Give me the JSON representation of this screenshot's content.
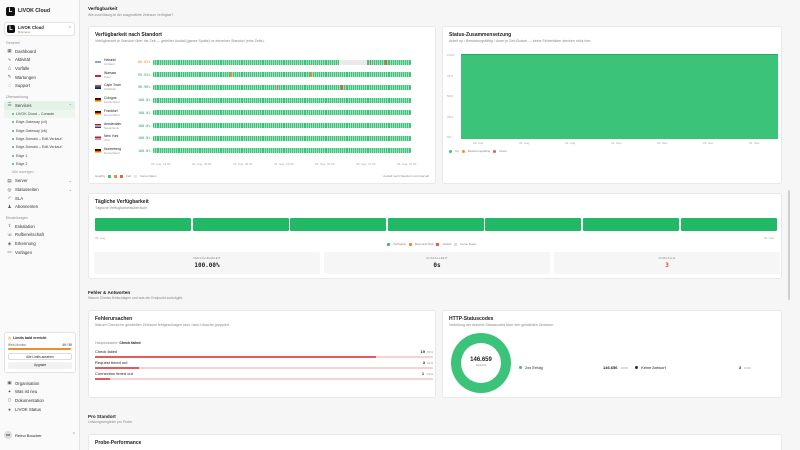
{
  "app": {
    "brand": "LIVOK Cloud",
    "org_name": "LIVOK Cloud",
    "org_plan": "Business"
  },
  "sidebar": {
    "section_general": "Generell",
    "general_items": [
      {
        "label": "Dashboard",
        "icon": "dashboard-icon"
      },
      {
        "label": "Aktivität",
        "icon": "activity-icon"
      },
      {
        "label": "Vorfälle",
        "icon": "incident-icon"
      },
      {
        "label": "Wartungen",
        "icon": "wrench-icon"
      },
      {
        "label": "Support",
        "icon": "support-icon"
      }
    ],
    "section_monitoring": "Überwachung",
    "services_label": "Services",
    "service_subitems": [
      "LIVOK Cloud – Console",
      "Edge-Gateway (v4)",
      "Edge-Gateway (v6)",
      "Edge-Domain – Edit-Verkauf",
      "Edge-Domain – Edit-Verkauf",
      "Edge 1",
      "Edge 2"
    ],
    "show_all": "Alle anzeigen",
    "more_items": [
      {
        "label": "Server",
        "icon": "server-icon"
      },
      {
        "label": "Statusseiten",
        "icon": "globe-icon"
      },
      {
        "label": "SLA",
        "icon": "sla-icon"
      },
      {
        "label": "Abonnenten",
        "icon": "subscribers-icon"
      }
    ],
    "section_settings": "Einstellungen",
    "settings_items": [
      {
        "label": "Eskalation",
        "icon": "escalation-icon"
      },
      {
        "label": "Rufbereitschaft",
        "icon": "oncall-icon"
      },
      {
        "label": "Erkennung",
        "icon": "detect-icon"
      },
      {
        "label": "Vorlagen",
        "icon": "template-icon"
      }
    ],
    "limits_title": "Limits bald erreicht",
    "limits_row_label": "Web-Monitor",
    "limits_row_value": "49 / 50",
    "limits_fill": 0.98,
    "limits_link": "Alle Limits ansehen",
    "upgrade": "Upgrade",
    "bottom_items": [
      {
        "label": "Organisation",
        "icon": "org-icon"
      },
      {
        "label": "Was ist neu",
        "icon": "news-icon"
      },
      {
        "label": "Dokumentation",
        "icon": "docs-icon"
      },
      {
        "label": "LIVOK Status",
        "icon": "status-icon"
      }
    ],
    "user_initials": "RB",
    "user_name": "Remo Boucher"
  },
  "main": {
    "availability_title": "Verfügbarkeit",
    "availability_sub": "Wie zuverlässig ist der ausgewählte Zeitraum verfügbar?",
    "by_location_title": "Verfügbarkeit nach Standort",
    "by_location_sub": "Verfügbarkeit je Standort über die Zeit — geteilter Ausfall (ganze Spalte) vs einzelner Standort (eine Zeile).",
    "locations": [
      {
        "name": "Helsinki",
        "country": "Finnland",
        "pct": "86.02%",
        "flag": "fi",
        "warn": true
      },
      {
        "name": "Warsaw",
        "country": "Polen",
        "pct": "95.92%",
        "flag": "pl",
        "warn": false
      },
      {
        "name": "Cape Town",
        "country": "Südafrika",
        "pct": "96.96%",
        "flag": "za",
        "warn": false
      },
      {
        "name": "Cologne",
        "country": "Deutschland",
        "pct": "100.0%",
        "flag": "de",
        "warn": false
      },
      {
        "name": "Frankfurt",
        "country": "Deutschland",
        "pct": "100.0%",
        "flag": "de",
        "warn": false
      },
      {
        "name": "Amsterdam",
        "country": "Niederlande",
        "pct": "100.0%",
        "flag": "nl",
        "warn": false
      },
      {
        "name": "New York",
        "country": "USA",
        "pct": "100.0%",
        "flag": "us",
        "warn": false
      },
      {
        "name": "Nuremberg",
        "country": "Deutschland",
        "pct": "100.0%",
        "flag": "de",
        "warn": false
      }
    ],
    "time_axis": [
      "29. Aug. 19:00",
      "30. Aug. 09:00",
      "31. Aug. 05:00",
      "01. Sep. 19:00",
      "02. Sep. 09:00",
      "03. Sep. 07:00",
      "04. Aug. 10:00"
    ],
    "legend_label": "Healthy",
    "legend_fail": "Fail",
    "legend_nodata": "Keine Daten",
    "legend_right": "Ausfall nach Standort und Intervall",
    "status_title": "Status-Zusammensetzung",
    "status_sub": "Anteil up / Bewertungsfähig / down je Zeit-Bucket — keine Fehlerbilder stecken nicht hier.",
    "status_y": [
      "100%",
      "75%",
      "50%",
      "25%",
      "0%"
    ],
    "status_x": [
      "29. Aug.",
      "30. Aug.",
      "31. Aug.",
      "01. Sep.",
      "02. Sep.",
      "03. Sep.",
      "04. Sep."
    ],
    "status_legend": [
      "Up",
      "Bewertungsfähig",
      "Down"
    ],
    "daily_title": "Tägliche Verfügbarkeit",
    "daily_sub": "Tägliche Verfügbarkeitsübersicht",
    "daily_start": "29. Aug.",
    "daily_end": "04. Sep.",
    "daily_legend": [
      "Verfügbar",
      "Beeinträchtigt",
      "Ausfall",
      "Keine Daten"
    ],
    "stats": [
      {
        "label": "VERFÜGBARKEIT",
        "value": "100.00%",
        "color": "#222"
      },
      {
        "label": "AUSFALLZEIT",
        "value": "0s",
        "color": "#222"
      },
      {
        "label": "VORFÄLLE",
        "value": "3",
        "color": "#d64545"
      }
    ],
    "errors_title": "Fehler & Antworten",
    "errors_sub": "Warum Checks fehlschlagen und was der Endpunkt zurückgibt.",
    "causes_title": "Fehlerursachen",
    "causes_sub": "Warum Checks im gewählten Zeitraum fehlgeschlagen sind, nach Ursache gruppiert.",
    "main_cause_label": "Hauptursache:",
    "main_cause_value": "Check failed",
    "causes": [
      {
        "label": "Check failed",
        "count": "19",
        "pct": "83%",
        "fill": 0.83
      },
      {
        "label": "Request timed out",
        "count": "3",
        "pct": "13%",
        "fill": 0.13
      },
      {
        "label": "Connection timed out",
        "count": "1",
        "pct": "4.3%",
        "fill": 0.043
      }
    ],
    "http_title": "HTTP-Statuscodes",
    "http_sub": "Verteilung der Antwort-Statuscodes über den gewählten Zeitraum.",
    "http_total": "146.659",
    "http_total_label": "Gesamt",
    "http_rows": [
      {
        "label": "2xx Erfolg",
        "count": "146.656",
        "pct": "100%",
        "color": "#3cc37a"
      },
      {
        "label": "Keine Antwort",
        "count": "3",
        "pct": "0.0%",
        "color": "#2b2b2b"
      }
    ],
    "per_location_title": "Pro Standort",
    "per_location_sub": "Leistungsvergleich pro Probe.",
    "probe_perf_title": "Probe-Performance"
  }
}
